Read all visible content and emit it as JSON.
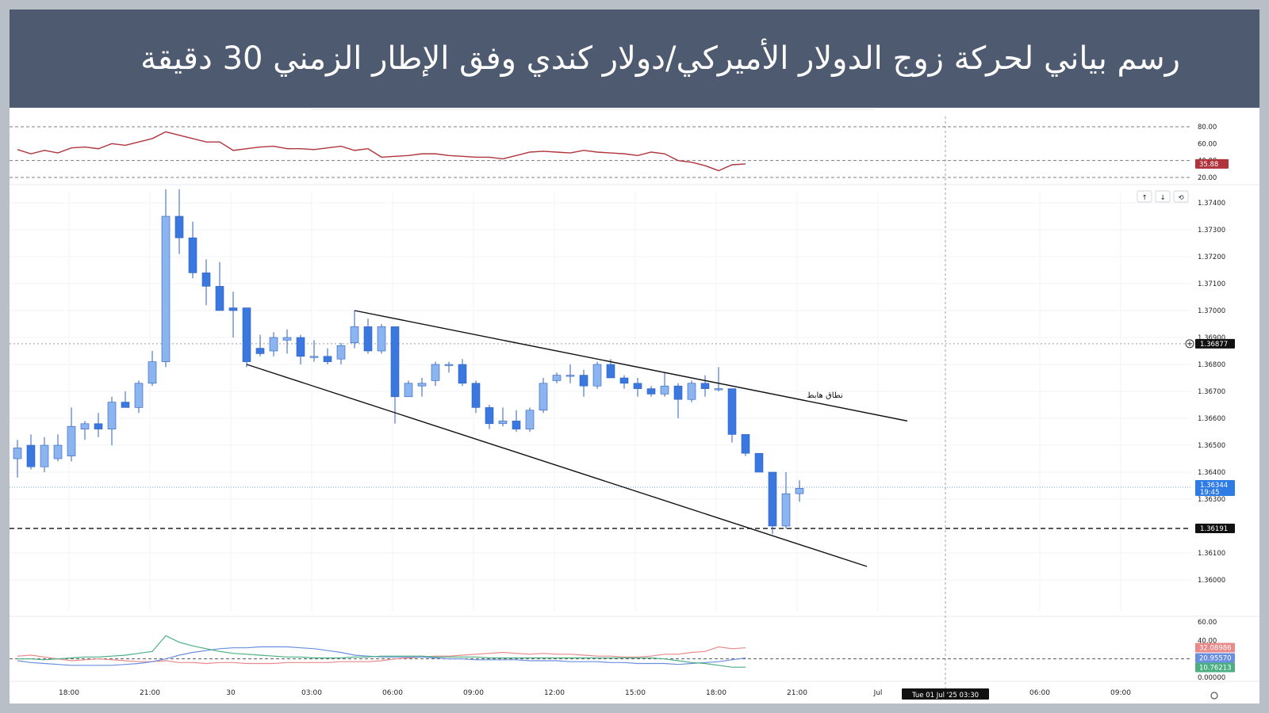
{
  "banner": {
    "title": "رسم بياني لحركة زوج الدولار الأميركي/دولار كندي وفق الإطار الزمني 30 دقيقة"
  },
  "colors": {
    "banner_bg": "#4e5a70",
    "candle_up": "#8bb4f1",
    "candle_down": "#3a78e0",
    "rsi_line": "#b0343c",
    "di_plus": "#4caf82",
    "di_minus": "#e88a8a",
    "adx": "#6a8fe0",
    "price_tag": "#2f7be6",
    "level_tag": "#111111"
  },
  "toolbar": {
    "up_icon": "arrow-up-icon",
    "down_icon": "arrow-down-icon",
    "reset_icon": "reset-icon"
  },
  "chart_data": [
    {
      "type": "line",
      "name": "rsi-panel",
      "ylim": [
        20,
        80
      ],
      "yticks": [
        "80.00",
        "60.00",
        "40.00",
        "20.00"
      ],
      "levels": [
        80,
        40,
        20
      ],
      "values": [
        53,
        48,
        52,
        49,
        55,
        56,
        54,
        60,
        58,
        62,
        66,
        74,
        70,
        66,
        62,
        62,
        52,
        54,
        56,
        57,
        54,
        54,
        53,
        55,
        57,
        52,
        54,
        44,
        45,
        46,
        48,
        48,
        46,
        45,
        44,
        44,
        42,
        46,
        50,
        51,
        50,
        49,
        52,
        50,
        49,
        48,
        46,
        50,
        48,
        40,
        38,
        34,
        28,
        35,
        36
      ],
      "last_value_label": "35.88"
    },
    {
      "type": "candlestick",
      "name": "price-panel",
      "ylim": [
        1.359,
        1.375
      ],
      "yticks": [
        "1.37400",
        "1.37300",
        "1.37200",
        "1.37100",
        "1.37000",
        "1.36900",
        "1.36800",
        "1.36700",
        "1.36600",
        "1.36500",
        "1.36400",
        "1.36300",
        "1.36100",
        "1.36000"
      ],
      "candles": [
        {
          "o": 1.3645,
          "h": 1.3652,
          "l": 1.3638,
          "c": 1.3649
        },
        {
          "o": 1.365,
          "h": 1.3654,
          "l": 1.3641,
          "c": 1.3642
        },
        {
          "o": 1.3642,
          "h": 1.3653,
          "l": 1.364,
          "c": 1.365
        },
        {
          "o": 1.3645,
          "h": 1.3654,
          "l": 1.3644,
          "c": 1.365
        },
        {
          "o": 1.3646,
          "h": 1.3664,
          "l": 1.3644,
          "c": 1.3657
        },
        {
          "o": 1.3656,
          "h": 1.3659,
          "l": 1.3652,
          "c": 1.3658
        },
        {
          "o": 1.3658,
          "h": 1.3662,
          "l": 1.3653,
          "c": 1.3656
        },
        {
          "o": 1.3656,
          "h": 1.3668,
          "l": 1.365,
          "c": 1.3666
        },
        {
          "o": 1.3666,
          "h": 1.367,
          "l": 1.3664,
          "c": 1.3664
        },
        {
          "o": 1.3664,
          "h": 1.3674,
          "l": 1.3662,
          "c": 1.3673
        },
        {
          "o": 1.3673,
          "h": 1.3685,
          "l": 1.3672,
          "c": 1.3681
        },
        {
          "o": 1.3681,
          "h": 1.3745,
          "l": 1.3679,
          "c": 1.3735
        },
        {
          "o": 1.3735,
          "h": 1.3745,
          "l": 1.3721,
          "c": 1.3727
        },
        {
          "o": 1.3727,
          "h": 1.3733,
          "l": 1.3712,
          "c": 1.3714
        },
        {
          "o": 1.3714,
          "h": 1.3719,
          "l": 1.3702,
          "c": 1.3709
        },
        {
          "o": 1.3709,
          "h": 1.3718,
          "l": 1.37,
          "c": 1.37
        },
        {
          "o": 1.3701,
          "h": 1.3707,
          "l": 1.369,
          "c": 1.37
        },
        {
          "o": 1.3701,
          "h": 1.3701,
          "l": 1.3679,
          "c": 1.3681
        },
        {
          "o": 1.3686,
          "h": 1.3691,
          "l": 1.3683,
          "c": 1.3684
        },
        {
          "o": 1.3685,
          "h": 1.3692,
          "l": 1.3683,
          "c": 1.369
        },
        {
          "o": 1.3689,
          "h": 1.3693,
          "l": 1.3684,
          "c": 1.369
        },
        {
          "o": 1.369,
          "h": 1.3691,
          "l": 1.368,
          "c": 1.3683
        },
        {
          "o": 1.3683,
          "h": 1.3689,
          "l": 1.3681,
          "c": 1.3683
        },
        {
          "o": 1.3683,
          "h": 1.3686,
          "l": 1.368,
          "c": 1.3681
        },
        {
          "o": 1.3682,
          "h": 1.3688,
          "l": 1.368,
          "c": 1.3687
        },
        {
          "o": 1.3688,
          "h": 1.37,
          "l": 1.3686,
          "c": 1.3694
        },
        {
          "o": 1.3694,
          "h": 1.3697,
          "l": 1.3684,
          "c": 1.3685
        },
        {
          "o": 1.3685,
          "h": 1.3695,
          "l": 1.3684,
          "c": 1.3694
        },
        {
          "o": 1.3694,
          "h": 1.3694,
          "l": 1.3658,
          "c": 1.3668
        },
        {
          "o": 1.3668,
          "h": 1.3674,
          "l": 1.3668,
          "c": 1.3673
        },
        {
          "o": 1.3672,
          "h": 1.3675,
          "l": 1.3668,
          "c": 1.3673
        },
        {
          "o": 1.3674,
          "h": 1.3681,
          "l": 1.3672,
          "c": 1.368
        },
        {
          "o": 1.368,
          "h": 1.3681,
          "l": 1.3677,
          "c": 1.368
        },
        {
          "o": 1.368,
          "h": 1.3682,
          "l": 1.3672,
          "c": 1.3673
        },
        {
          "o": 1.3673,
          "h": 1.3674,
          "l": 1.3662,
          "c": 1.3664
        },
        {
          "o": 1.3664,
          "h": 1.3665,
          "l": 1.3656,
          "c": 1.3658
        },
        {
          "o": 1.3658,
          "h": 1.3664,
          "l": 1.3657,
          "c": 1.3659
        },
        {
          "o": 1.3659,
          "h": 1.3663,
          "l": 1.3655,
          "c": 1.3656
        },
        {
          "o": 1.3656,
          "h": 1.3664,
          "l": 1.3655,
          "c": 1.3663
        },
        {
          "o": 1.3663,
          "h": 1.3675,
          "l": 1.3662,
          "c": 1.3673
        },
        {
          "o": 1.3674,
          "h": 1.3677,
          "l": 1.3673,
          "c": 1.3676
        },
        {
          "o": 1.3676,
          "h": 1.368,
          "l": 1.3673,
          "c": 1.3676
        },
        {
          "o": 1.3676,
          "h": 1.3678,
          "l": 1.3668,
          "c": 1.3672
        },
        {
          "o": 1.3672,
          "h": 1.3681,
          "l": 1.3671,
          "c": 1.368
        },
        {
          "o": 1.368,
          "h": 1.3682,
          "l": 1.3675,
          "c": 1.3675
        },
        {
          "o": 1.3675,
          "h": 1.3676,
          "l": 1.3671,
          "c": 1.3673
        },
        {
          "o": 1.3673,
          "h": 1.3675,
          "l": 1.3668,
          "c": 1.3671
        },
        {
          "o": 1.3671,
          "h": 1.3672,
          "l": 1.3668,
          "c": 1.3669
        },
        {
          "o": 1.3669,
          "h": 1.3677,
          "l": 1.3668,
          "c": 1.3672
        },
        {
          "o": 1.3672,
          "h": 1.3673,
          "l": 1.366,
          "c": 1.3667
        },
        {
          "o": 1.3667,
          "h": 1.3674,
          "l": 1.3666,
          "c": 1.3673
        },
        {
          "o": 1.3673,
          "h": 1.3676,
          "l": 1.3668,
          "c": 1.3671
        },
        {
          "o": 1.3671,
          "h": 1.3679,
          "l": 1.367,
          "c": 1.3671
        },
        {
          "o": 1.3671,
          "h": 1.3671,
          "l": 1.3651,
          "c": 1.3654
        },
        {
          "o": 1.3654,
          "h": 1.3654,
          "l": 1.3646,
          "c": 1.3647
        },
        {
          "o": 1.3647,
          "h": 1.3647,
          "l": 1.3641,
          "c": 1.364
        },
        {
          "o": 1.364,
          "h": 1.364,
          "l": 1.3617,
          "c": 1.362
        },
        {
          "o": 1.362,
          "h": 1.364,
          "l": 1.3619,
          "c": 1.3632
        },
        {
          "o": 1.3632,
          "h": 1.3637,
          "l": 1.3629,
          "c": 1.3634
        }
      ],
      "levels": [
        {
          "price": 1.36877,
          "label": "1.36877",
          "style": "dotted"
        },
        {
          "price": 1.36191,
          "label": "1.36191",
          "style": "dashed"
        }
      ],
      "current_price": {
        "price": 1.36344,
        "label": "1.36344",
        "countdown": "19:45"
      },
      "channel": {
        "upper": [
          {
            "i": 25,
            "p": 1.37
          },
          {
            "i": 66,
            "p": 1.3659
          }
        ],
        "lower": [
          {
            "i": 17,
            "p": 1.368
          },
          {
            "i": 63,
            "p": 1.3605
          }
        ],
        "label": "نطاق هابط"
      }
    },
    {
      "type": "line",
      "name": "dmi-panel",
      "ylim": [
        0,
        60
      ],
      "yticks": [
        "60.00",
        "40.00",
        "0.00000"
      ],
      "level": 20,
      "series": [
        {
          "key": "di_minus",
          "values": [
            23,
            24,
            22,
            20,
            18,
            19,
            20,
            19,
            18,
            17,
            17,
            18,
            16,
            16,
            15,
            16,
            16,
            15,
            15,
            15,
            16,
            16,
            16,
            16,
            17,
            17,
            17,
            18,
            20,
            21,
            22,
            23,
            23,
            24,
            25,
            26,
            27,
            26,
            25,
            26,
            25,
            25,
            24,
            23,
            23,
            22,
            22,
            23,
            25,
            25,
            27,
            28,
            33,
            31,
            32
          ]
        },
        {
          "key": "adx",
          "values": [
            18,
            16,
            15,
            14,
            13,
            13,
            13,
            13,
            14,
            15,
            17,
            20,
            24,
            27,
            29,
            31,
            32,
            32,
            33,
            33,
            33,
            32,
            31,
            29,
            27,
            24,
            23,
            22,
            22,
            22,
            22,
            21,
            20,
            20,
            19,
            19,
            19,
            19,
            18,
            18,
            18,
            17,
            17,
            17,
            16,
            16,
            15,
            15,
            15,
            14,
            15,
            16,
            17,
            19,
            21
          ]
        },
        {
          "key": "di_plus",
          "values": [
            20,
            20,
            19,
            20,
            21,
            22,
            22,
            23,
            24,
            26,
            28,
            45,
            38,
            34,
            31,
            28,
            26,
            25,
            24,
            23,
            22,
            22,
            21,
            21,
            21,
            22,
            22,
            23,
            23,
            23,
            23,
            22,
            22,
            22,
            22,
            21,
            21,
            21,
            21,
            21,
            21,
            21,
            21,
            21,
            21,
            21,
            21,
            21,
            20,
            18,
            16,
            15,
            13,
            11,
            11
          ]
        }
      ],
      "value_labels": [
        "32.08986",
        "20.95570",
        "10.76213"
      ]
    }
  ],
  "xaxis": {
    "ticks": [
      {
        "label": "15:00",
        "i": -1.8
      },
      {
        "label": "18:00",
        "i": 4
      },
      {
        "label": "21:00",
        "i": 10
      },
      {
        "label": "30",
        "i": 16
      },
      {
        "label": "03:00",
        "i": 22
      },
      {
        "label": "06:00",
        "i": 28
      },
      {
        "label": "09:00",
        "i": 34
      },
      {
        "label": "12:00",
        "i": 40
      },
      {
        "label": "15:00",
        "i": 46
      },
      {
        "label": "18:00",
        "i": 52
      },
      {
        "label": "21:00",
        "i": 58
      },
      {
        "label": "Jul",
        "i": 64
      },
      {
        "label": "06:00",
        "i": 76
      },
      {
        "label": "09:00",
        "i": 82
      }
    ],
    "crosshair_label": "Tue 01 Jul '25   03:30",
    "crosshair_i": 69
  }
}
